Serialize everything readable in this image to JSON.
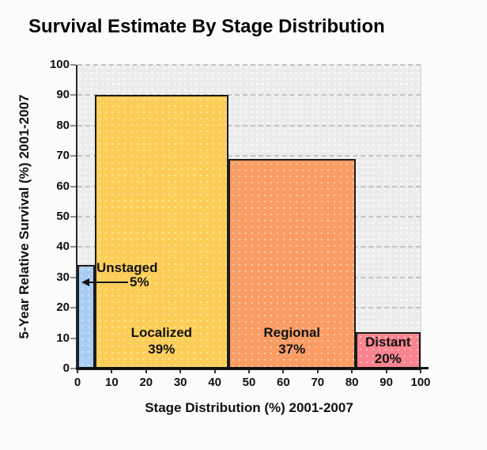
{
  "chart_data": {
    "type": "bar",
    "variant": "variable-width-marimekko",
    "title": "Survival Estimate By Stage Distribution",
    "xlabel": "Stage Distribution (%) 2001-2007",
    "ylabel": "5-Year Relative Survival (%) 2001-2007",
    "xlim": [
      0,
      100
    ],
    "ylim": [
      0,
      100
    ],
    "x_ticks": [
      0,
      10,
      20,
      30,
      40,
      50,
      60,
      70,
      80,
      90,
      100
    ],
    "y_ticks": [
      0,
      10,
      20,
      30,
      40,
      50,
      60,
      70,
      80,
      90,
      100
    ],
    "grid": "horizontal dashed gray on light-gray dotted background",
    "legend": "none",
    "bars": [
      {
        "stage": "Unstaged",
        "distribution_pct": 5,
        "survival_pct": 34,
        "color": "#A9CDF1",
        "label_text": "Unstaged",
        "value_text": "5%",
        "label_placement": "outside-arrow"
      },
      {
        "stage": "Localized",
        "distribution_pct": 39,
        "survival_pct": 90,
        "color": "#FCCE58",
        "label_text": "Localized",
        "value_text": "39%",
        "label_placement": "inside"
      },
      {
        "stage": "Regional",
        "distribution_pct": 37,
        "survival_pct": 69,
        "color": "#FA9D64",
        "label_text": "Regional",
        "value_text": "37%",
        "label_placement": "inside"
      },
      {
        "stage": "Distant",
        "distribution_pct": 20,
        "survival_pct": 12,
        "color": "#F9848F",
        "label_text": "Distant",
        "value_text": "20%",
        "label_placement": "inside"
      }
    ],
    "colors": {
      "plot_background": "#ECECEC",
      "gridline": "#C3C3C3",
      "axis": "#111111",
      "bar_border": "#1C1C1C",
      "text": "#111111"
    }
  }
}
